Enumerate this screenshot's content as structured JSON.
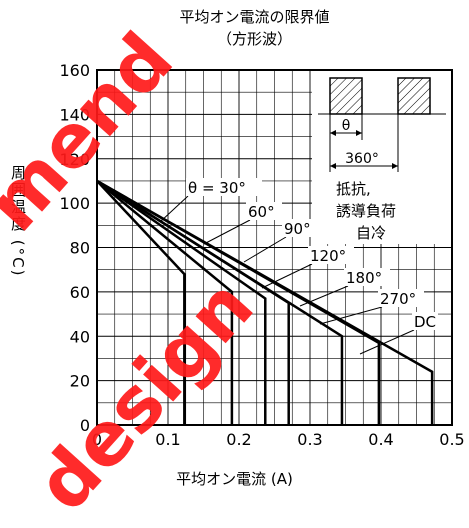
{
  "chart_data": {
    "type": "line",
    "title": "平均オン電流の限界値",
    "subtitle": "（方形波）",
    "xlabel": "平均オン電流 (A)",
    "ylabel": "周囲温度 (°C)",
    "xlim": [
      0,
      0.5
    ],
    "ylim": [
      0,
      160
    ],
    "xticks": [
      "0",
      "0.1",
      "0.2",
      "0.3",
      "0.4",
      "0.5"
    ],
    "yticks": [
      "0",
      "20",
      "40",
      "60",
      "80",
      "100",
      "120",
      "140",
      "160"
    ],
    "grid": true,
    "series": [
      {
        "name": "θ = 30°",
        "x": [
          0,
          0.123,
          0.123
        ],
        "y": [
          110,
          68,
          0
        ]
      },
      {
        "name": "60°",
        "x": [
          0,
          0.19,
          0.19
        ],
        "y": [
          110,
          60,
          0
        ]
      },
      {
        "name": "90°",
        "x": [
          0,
          0.237,
          0.237
        ],
        "y": [
          110,
          57,
          0
        ]
      },
      {
        "name": "120°",
        "x": [
          0,
          0.27,
          0.27
        ],
        "y": [
          110,
          55,
          0
        ]
      },
      {
        "name": "180°",
        "x": [
          0,
          0.345,
          0.345
        ],
        "y": [
          110,
          40,
          0
        ]
      },
      {
        "name": "270°",
        "x": [
          0,
          0.397,
          0.397
        ],
        "y": [
          110,
          37,
          0
        ]
      },
      {
        "name": "DC",
        "x": [
          0,
          0.472,
          0.472
        ],
        "y": [
          110,
          24,
          0
        ]
      }
    ],
    "inset": {
      "theta_label": "θ",
      "period_label": "360°",
      "condition_lines": [
        "抵抗,",
        "誘導負荷",
        "自冷"
      ]
    }
  },
  "watermark": [
    "mend",
    "design"
  ]
}
